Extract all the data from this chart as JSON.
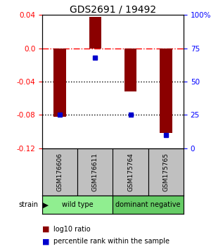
{
  "title": "GDS2691 / 19492",
  "samples": [
    "GSM176606",
    "GSM176611",
    "GSM175764",
    "GSM175765"
  ],
  "log10_ratio": [
    -0.082,
    0.038,
    -0.052,
    -0.102
  ],
  "percentile_rank": [
    25,
    68,
    25,
    10
  ],
  "groups": [
    {
      "label": "wild type",
      "samples": [
        0,
        1
      ],
      "color": "#90EE90"
    },
    {
      "label": "dominant negative",
      "samples": [
        2,
        3
      ],
      "color": "#66CC66"
    }
  ],
  "group_label": "strain",
  "ylim_left": [
    -0.12,
    0.04
  ],
  "ylim_right": [
    0,
    100
  ],
  "right_ticks": [
    0,
    25,
    50,
    75,
    100
  ],
  "right_tick_labels": [
    "0",
    "25",
    "50",
    "75",
    "100%"
  ],
  "left_ticks": [
    -0.12,
    -0.08,
    -0.04,
    0.0,
    0.04
  ],
  "hline_dash": 0.0,
  "hlines_dot": [
    -0.04,
    -0.08
  ],
  "bar_color": "#8B0000",
  "dot_color": "#0000CD",
  "bar_width": 0.35,
  "legend_items": [
    {
      "label": "log10 ratio",
      "color": "#8B0000"
    },
    {
      "label": "percentile rank within the sample",
      "color": "#0000CD"
    }
  ],
  "title_fontsize": 10,
  "tick_fontsize": 7.5,
  "sample_fontsize": 6.5,
  "group_fontsize": 7,
  "legend_fontsize": 7
}
